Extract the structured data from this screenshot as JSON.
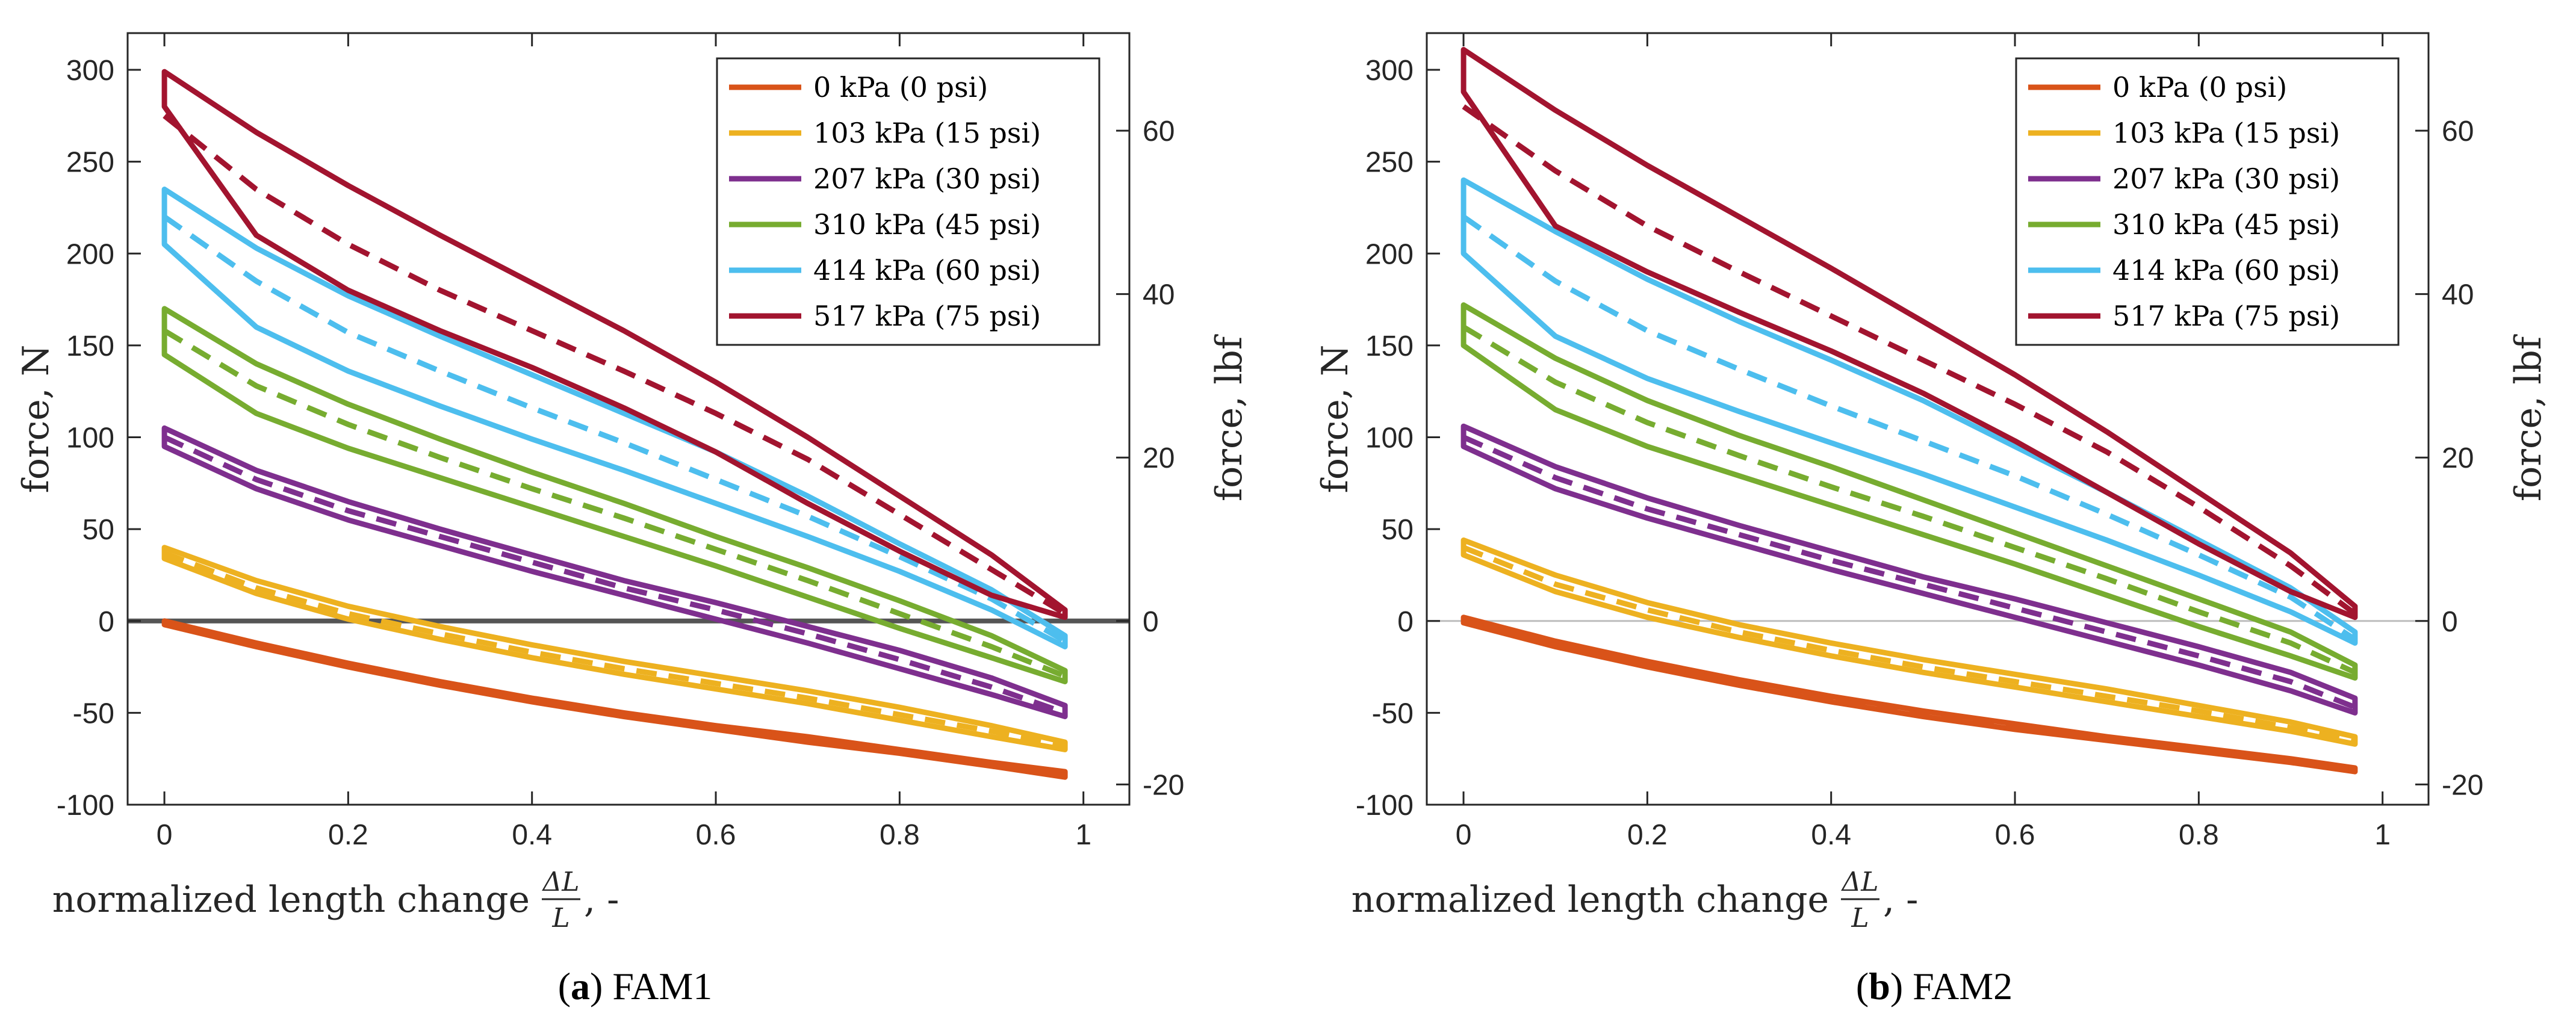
{
  "chart_data": [
    {
      "type": "line",
      "caption_letter": "a",
      "caption_text": ") FAM1",
      "caption_open": "(",
      "xlabel": "normalized length change",
      "xlabel_frac_num": "ΔL",
      "xlabel_frac_den": "L",
      "xlabel_suffix": ", -",
      "ylabel": "force, N",
      "y2label": "force, lbf",
      "xlim": [
        -0.04,
        1.05
      ],
      "ylim": [
        -100,
        320
      ],
      "y2lim": [
        -22.48,
        71.94
      ],
      "xticks": [
        0,
        0.2,
        0.4,
        0.6,
        0.8,
        1
      ],
      "xtick_labels": [
        "0",
        "0.2",
        "0.4",
        "0.6",
        "0.8",
        "1"
      ],
      "yticks": [
        -100,
        -50,
        0,
        50,
        100,
        150,
        200,
        250,
        300
      ],
      "ytick_labels": [
        "-100",
        "-50",
        "0",
        "50",
        "100",
        "150",
        "200",
        "250",
        "300"
      ],
      "y2ticks": [
        -20,
        0,
        20,
        40,
        60
      ],
      "y2tick_labels": [
        "-20",
        "0",
        "20",
        "40",
        "60"
      ],
      "zero_line": "bold",
      "legend_position": "top-right",
      "series": [
        {
          "name": "0 kPa (0 psi)",
          "color": "#D95319",
          "x": [
            0,
            0.1,
            0.2,
            0.3,
            0.4,
            0.5,
            0.6,
            0.7,
            0.8,
            0.9,
            0.98
          ],
          "upper": [
            0,
            -12,
            -23,
            -33,
            -42,
            -50,
            -57,
            -63,
            -70,
            -77,
            -82
          ],
          "lower": [
            -2,
            -14,
            -25,
            -35,
            -44,
            -52,
            -59,
            -66,
            -72,
            -79,
            -85
          ],
          "dashed": [
            -1,
            -13,
            -24,
            -34,
            -43,
            -51,
            -58,
            -65,
            -71,
            -78,
            -84
          ]
        },
        {
          "name": "103 kPa (15 psi)",
          "color": "#EDB120",
          "x": [
            0,
            0.1,
            0.2,
            0.3,
            0.4,
            0.5,
            0.6,
            0.7,
            0.8,
            0.9,
            0.98
          ],
          "upper": [
            40,
            22,
            8,
            -3,
            -13,
            -22,
            -30,
            -38,
            -47,
            -57,
            -66
          ],
          "lower": [
            34,
            15,
            1,
            -10,
            -20,
            -29,
            -37,
            -45,
            -54,
            -63,
            -70
          ],
          "dashed": [
            37,
            18,
            4,
            -7,
            -17,
            -26,
            -34,
            -42,
            -51,
            -60,
            -68
          ]
        },
        {
          "name": "207 kPa (30 psi)",
          "color": "#7E2F8E",
          "x": [
            0,
            0.1,
            0.2,
            0.3,
            0.4,
            0.5,
            0.6,
            0.7,
            0.8,
            0.9,
            0.98
          ],
          "upper": [
            105,
            82,
            65,
            50,
            36,
            22,
            10,
            -3,
            -16,
            -31,
            -46
          ],
          "lower": [
            95,
            72,
            55,
            41,
            27,
            14,
            1,
            -12,
            -26,
            -40,
            -52
          ],
          "dashed": [
            100,
            77,
            60,
            46,
            32,
            18,
            6,
            -7,
            -21,
            -36,
            -50
          ]
        },
        {
          "name": "310 kPa (45 psi)",
          "color": "#77AC30",
          "x": [
            0,
            0.1,
            0.2,
            0.3,
            0.4,
            0.5,
            0.6,
            0.7,
            0.8,
            0.9,
            0.98
          ],
          "upper": [
            170,
            140,
            118,
            99,
            81,
            64,
            46,
            29,
            11,
            -8,
            -27
          ],
          "lower": [
            145,
            113,
            94,
            78,
            62,
            46,
            30,
            13,
            -4,
            -20,
            -33
          ],
          "dashed": [
            158,
            128,
            107,
            89,
            72,
            56,
            39,
            22,
            4,
            -14,
            -30
          ]
        },
        {
          "name": "414 kPa (60 psi)",
          "color": "#4DBEEE",
          "x": [
            0,
            0.1,
            0.2,
            0.3,
            0.4,
            0.5,
            0.6,
            0.7,
            0.8,
            0.9,
            0.98
          ],
          "upper": [
            235,
            203,
            177,
            155,
            134,
            113,
            92,
            68,
            42,
            17,
            -8
          ],
          "lower": [
            205,
            160,
            136,
            117,
            99,
            82,
            64,
            46,
            27,
            6,
            -14
          ],
          "dashed": [
            220,
            185,
            157,
            136,
            116,
            97,
            77,
            57,
            35,
            12,
            -11
          ]
        },
        {
          "name": "517 kPa (75 psi)",
          "color": "#A2142F",
          "x": [
            0,
            0.1,
            0.2,
            0.3,
            0.4,
            0.5,
            0.6,
            0.7,
            0.8,
            0.9,
            0.98
          ],
          "upper": [
            299,
            266,
            237,
            210,
            184,
            158,
            130,
            100,
            68,
            36,
            6
          ],
          "lower": [
            280,
            210,
            180,
            158,
            138,
            116,
            92,
            64,
            38,
            14,
            2
          ],
          "dashed": [
            275,
            235,
            205,
            180,
            158,
            136,
            113,
            88,
            58,
            28,
            4
          ]
        }
      ]
    },
    {
      "type": "line",
      "caption_letter": "b",
      "caption_text": ") FAM2",
      "caption_open": "(",
      "xlabel": "normalized length change",
      "xlabel_frac_num": "ΔL",
      "xlabel_frac_den": "L",
      "xlabel_suffix": ", -",
      "ylabel": "force, N",
      "y2label": "force, lbf",
      "xlim": [
        -0.04,
        1.05
      ],
      "ylim": [
        -100,
        320
      ],
      "y2lim": [
        -22.48,
        71.94
      ],
      "xticks": [
        0,
        0.2,
        0.4,
        0.6,
        0.8,
        1
      ],
      "xtick_labels": [
        "0",
        "0.2",
        "0.4",
        "0.6",
        "0.8",
        "1"
      ],
      "yticks": [
        -100,
        -50,
        0,
        50,
        100,
        150,
        200,
        250,
        300
      ],
      "ytick_labels": [
        "-100",
        "-50",
        "0",
        "50",
        "100",
        "150",
        "200",
        "250",
        "300"
      ],
      "y2ticks": [
        -20,
        0,
        20,
        40,
        60
      ],
      "y2tick_labels": [
        "-20",
        "0",
        "20",
        "40",
        "60"
      ],
      "zero_line": "thin",
      "legend_position": "top-right",
      "series": [
        {
          "name": "0 kPa (0 psi)",
          "color": "#D95319",
          "x": [
            0,
            0.1,
            0.2,
            0.3,
            0.4,
            0.5,
            0.6,
            0.7,
            0.8,
            0.9,
            0.97
          ],
          "upper": [
            2,
            -11,
            -22,
            -32,
            -41,
            -49,
            -56,
            -63,
            -69,
            -75,
            -80
          ],
          "lower": [
            -1,
            -14,
            -25,
            -35,
            -44,
            -52,
            -59,
            -65,
            -71,
            -77,
            -82
          ],
          "dashed": [
            0,
            -13,
            -24,
            -34,
            -43,
            -51,
            -58,
            -64,
            -70,
            -76,
            -81
          ]
        },
        {
          "name": "103 kPa (15 psi)",
          "color": "#EDB120",
          "x": [
            0,
            0.1,
            0.2,
            0.3,
            0.4,
            0.5,
            0.6,
            0.7,
            0.8,
            0.9,
            0.97
          ],
          "upper": [
            44,
            25,
            10,
            -2,
            -12,
            -21,
            -29,
            -37,
            -46,
            -55,
            -63
          ],
          "lower": [
            36,
            16,
            2,
            -9,
            -19,
            -28,
            -36,
            -44,
            -52,
            -60,
            -67
          ],
          "dashed": [
            40,
            20,
            6,
            -6,
            -16,
            -25,
            -33,
            -41,
            -49,
            -58,
            -65
          ]
        },
        {
          "name": "207 kPa (30 psi)",
          "color": "#7E2F8E",
          "x": [
            0,
            0.1,
            0.2,
            0.3,
            0.4,
            0.5,
            0.6,
            0.7,
            0.8,
            0.9,
            0.97
          ],
          "upper": [
            106,
            84,
            67,
            52,
            38,
            24,
            12,
            -1,
            -14,
            -28,
            -42
          ],
          "lower": [
            95,
            72,
            56,
            42,
            28,
            15,
            2,
            -11,
            -24,
            -38,
            -50
          ],
          "dashed": [
            100,
            78,
            61,
            47,
            33,
            20,
            7,
            -6,
            -19,
            -33,
            -47
          ]
        },
        {
          "name": "310 kPa (45 psi)",
          "color": "#77AC30",
          "x": [
            0,
            0.1,
            0.2,
            0.3,
            0.4,
            0.5,
            0.6,
            0.7,
            0.8,
            0.9,
            0.97
          ],
          "upper": [
            172,
            143,
            120,
            101,
            84,
            66,
            48,
            30,
            12,
            -6,
            -24
          ],
          "lower": [
            150,
            115,
            95,
            79,
            63,
            47,
            31,
            14,
            -3,
            -19,
            -31
          ],
          "dashed": [
            160,
            130,
            108,
            90,
            73,
            57,
            40,
            23,
            5,
            -12,
            -28
          ]
        },
        {
          "name": "414 kPa (60 psi)",
          "color": "#4DBEEE",
          "x": [
            0,
            0.1,
            0.2,
            0.3,
            0.4,
            0.5,
            0.6,
            0.7,
            0.8,
            0.9,
            0.97
          ],
          "upper": [
            240,
            212,
            186,
            163,
            142,
            120,
            95,
            70,
            44,
            18,
            -6
          ],
          "lower": [
            200,
            155,
            132,
            114,
            97,
            80,
            62,
            44,
            25,
            5,
            -12
          ],
          "dashed": [
            220,
            185,
            158,
            137,
            117,
            98,
            79,
            58,
            36,
            13,
            -10
          ]
        },
        {
          "name": "517 kPa (75 psi)",
          "color": "#A2142F",
          "x": [
            0,
            0.1,
            0.2,
            0.3,
            0.4,
            0.5,
            0.6,
            0.7,
            0.8,
            0.9,
            0.97
          ],
          "upper": [
            311,
            278,
            248,
            220,
            192,
            163,
            134,
            103,
            70,
            37,
            8
          ],
          "lower": [
            288,
            215,
            190,
            168,
            147,
            124,
            98,
            70,
            42,
            16,
            2
          ],
          "dashed": [
            280,
            245,
            215,
            190,
            166,
            142,
            118,
            92,
            62,
            30,
            4
          ]
        }
      ]
    }
  ]
}
